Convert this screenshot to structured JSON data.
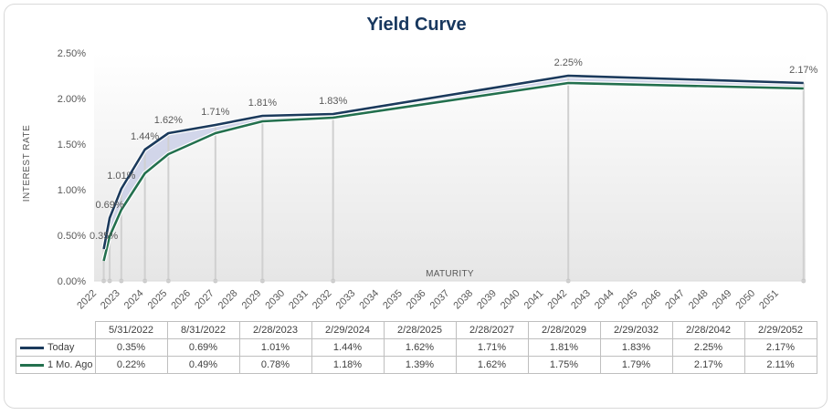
{
  "colors": {
    "today": "#1b3a5c",
    "month_ago": "#23704e",
    "band": "#c5cbe6",
    "drop": "#d0d0d0",
    "title": "#17375e"
  },
  "chart_data": {
    "type": "line",
    "title": "Yield Curve",
    "xlabel": "MATURITY",
    "ylabel": "INTEREST RATE",
    "ylim": [
      0,
      0.025
    ],
    "yticks": [
      "0.00%",
      "0.50%",
      "1.00%",
      "1.50%",
      "2.00%",
      "2.50%"
    ],
    "x_axis_labels": [
      "2022",
      "2023",
      "2024",
      "2025",
      "2026",
      "2027",
      "2028",
      "2029",
      "2030",
      "2031",
      "2032",
      "2033",
      "2034",
      "2035",
      "2036",
      "2037",
      "2038",
      "2039",
      "2040",
      "2041",
      "2042",
      "2043",
      "2044",
      "2045",
      "2046",
      "2047",
      "2048",
      "2049",
      "2050",
      "2051"
    ],
    "x_dates": [
      "2022-05-31",
      "2022-08-31",
      "2023-02-28",
      "2024-02-29",
      "2025-02-28",
      "2027-02-28",
      "2029-02-28",
      "2032-02-29",
      "2042-02-28",
      "2052-02-29"
    ],
    "series": [
      {
        "name": "Today",
        "values": [
          0.0035,
          0.0069,
          0.0101,
          0.0144,
          0.0162,
          0.0171,
          0.0181,
          0.0183,
          0.0225,
          0.0217
        ],
        "data_labels": [
          "0.35%",
          "0.69%",
          "1.01%",
          "1.44%",
          "1.62%",
          "1.71%",
          "1.81%",
          "1.83%",
          "2.25%",
          "2.17%"
        ]
      },
      {
        "name": "1 Mo. Ago",
        "values": [
          0.0022,
          0.0049,
          0.0078,
          0.0118,
          0.0139,
          0.0162,
          0.0175,
          0.0179,
          0.0217,
          0.0211
        ]
      }
    ]
  },
  "table": {
    "headers": [
      "5/31/2022",
      "8/31/2022",
      "2/28/2023",
      "2/29/2024",
      "2/28/2025",
      "2/28/2027",
      "2/28/2029",
      "2/29/2032",
      "2/28/2042",
      "2/29/2052"
    ],
    "rows": [
      {
        "label": "Today",
        "cells": [
          "0.35%",
          "0.69%",
          "1.01%",
          "1.44%",
          "1.62%",
          "1.71%",
          "1.81%",
          "1.83%",
          "2.25%",
          "2.17%"
        ]
      },
      {
        "label": "1 Mo. Ago",
        "cells": [
          "0.22%",
          "0.49%",
          "0.78%",
          "1.18%",
          "1.39%",
          "1.62%",
          "1.75%",
          "1.79%",
          "2.17%",
          "2.11%"
        ]
      }
    ]
  }
}
